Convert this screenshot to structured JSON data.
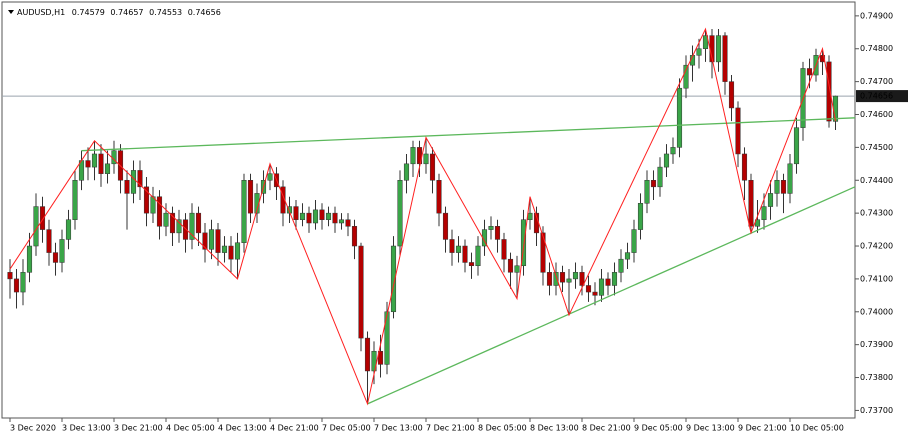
{
  "chart_data": {
    "type": "candlestick",
    "title": "AUDUSD,H1",
    "categories": [
      "3 Dec 2020",
      null,
      null,
      null,
      null,
      null,
      null,
      null,
      "3 Dec 13:00",
      null,
      null,
      null,
      null,
      null,
      null,
      null,
      "3 Dec 21:00",
      null,
      null,
      null,
      null,
      null,
      null,
      null,
      "4 Dec 05:00",
      null,
      null,
      null,
      null,
      null,
      null,
      null,
      "4 Dec 13:00",
      null,
      null,
      null,
      null,
      null,
      null,
      null,
      "4 Dec 21:00",
      null,
      null,
      null,
      null,
      null,
      null,
      null,
      "7 Dec 05:00",
      null,
      null,
      null,
      null,
      null,
      null,
      null,
      "7 Dec 13:00",
      null,
      null,
      null,
      null,
      null,
      null,
      null,
      "7 Dec 21:00",
      null,
      null,
      null,
      null,
      null,
      null,
      null,
      "8 Dec 05:00",
      null,
      null,
      null,
      null,
      null,
      null,
      null,
      "8 Dec 13:00",
      null,
      null,
      null,
      null,
      null,
      null,
      null,
      "8 Dec 21:00",
      null,
      null,
      null,
      null,
      null,
      null,
      null,
      "9 Dec 05:00",
      null,
      null,
      null,
      null,
      null,
      null,
      null,
      "9 Dec 13:00",
      null,
      null,
      null,
      null,
      null,
      null,
      null,
      "9 Dec 21:00",
      null,
      null,
      null,
      null,
      null,
      null,
      null,
      "10 Dec 05:00",
      null,
      null,
      null,
      null,
      null,
      null,
      null
    ],
    "open": [
      0.7412,
      0.741,
      0.7406,
      0.7412,
      0.742,
      0.7432,
      0.7425,
      0.7418,
      0.7415,
      0.7422,
      0.7428,
      0.744,
      0.7446,
      0.7444,
      0.7448,
      0.7442,
      0.7445,
      0.7449,
      0.744,
      0.7436,
      0.7443,
      0.7438,
      0.743,
      0.7435,
      0.7426,
      0.743,
      0.7424,
      0.7428,
      0.7422,
      0.743,
      0.7424,
      0.7419,
      0.7425,
      0.7418,
      0.742,
      0.7416,
      0.7421,
      0.744,
      0.743,
      0.7436,
      0.744,
      0.7442,
      0.7438,
      0.743,
      0.7432,
      0.7428,
      0.743,
      0.7427,
      0.7431,
      0.7428,
      0.743,
      0.7427,
      0.7428,
      0.7426,
      0.742,
      0.7392,
      0.7382,
      0.7388,
      0.7384,
      0.74,
      0.742,
      0.744,
      0.7445,
      0.745,
      0.7445,
      0.7448,
      0.744,
      0.743,
      0.7422,
      0.7418,
      0.742,
      0.7415,
      0.7414,
      0.742,
      0.7425,
      0.7426,
      0.7422,
      0.7416,
      0.7412,
      0.7414,
      0.7428,
      0.743,
      0.7424,
      0.7412,
      0.7408,
      0.7412,
      0.7409,
      0.741,
      0.7412,
      0.7408,
      0.7406,
      0.7405,
      0.741,
      0.7408,
      0.7412,
      0.7416,
      0.7418,
      0.7425,
      0.7433,
      0.744,
      0.7438,
      0.7444,
      0.7448,
      0.745,
      0.7468,
      0.7475,
      0.7478,
      0.748,
      0.7484,
      0.7476,
      0.7484,
      0.747,
      0.7462,
      0.7448,
      0.744,
      0.7426,
      0.7428,
      0.7432,
      0.7436,
      0.744,
      0.7436,
      0.7445,
      0.7456,
      0.7474,
      0.7472,
      0.7478,
      0.7476,
      0.74579
    ],
    "high": [
      0.7416,
      0.7413,
      0.7416,
      0.7424,
      0.7436,
      0.7435,
      0.7428,
      0.7421,
      0.7425,
      0.7431,
      0.7443,
      0.7449,
      0.745,
      0.7452,
      0.7451,
      0.7449,
      0.7452,
      0.7451,
      0.7443,
      0.7446,
      0.7446,
      0.7441,
      0.7438,
      0.7437,
      0.7433,
      0.7432,
      0.7431,
      0.743,
      0.7433,
      0.7432,
      0.7427,
      0.7428,
      0.7427,
      0.7423,
      0.7423,
      0.7424,
      0.7442,
      0.7442,
      0.7439,
      0.7443,
      0.7445,
      0.7444,
      0.744,
      0.7435,
      0.7434,
      0.7433,
      0.7432,
      0.7434,
      0.7433,
      0.7432,
      0.7432,
      0.743,
      0.743,
      0.7428,
      0.7421,
      0.7394,
      0.7391,
      0.7393,
      0.7403,
      0.7423,
      0.7443,
      0.7448,
      0.7452,
      0.7452,
      0.7453,
      0.745,
      0.7442,
      0.7432,
      0.7425,
      0.7423,
      0.7422,
      0.7418,
      0.7423,
      0.7428,
      0.7429,
      0.7428,
      0.7424,
      0.7418,
      0.7417,
      0.7431,
      0.7435,
      0.7432,
      0.7426,
      0.7415,
      0.7415,
      0.7414,
      0.7413,
      0.7415,
      0.7414,
      0.7411,
      0.7409,
      0.7413,
      0.7412,
      0.7415,
      0.7419,
      0.7421,
      0.7428,
      0.7436,
      0.7443,
      0.7443,
      0.7447,
      0.7451,
      0.7453,
      0.7471,
      0.7478,
      0.7481,
      0.7483,
      0.7486,
      0.7486,
      0.7486,
      0.7485,
      0.7472,
      0.7464,
      0.745,
      0.7442,
      0.7434,
      0.7436,
      0.744,
      0.7443,
      0.7442,
      0.7448,
      0.7459,
      0.7476,
      0.7477,
      0.748,
      0.748,
      0.7478,
      0.74657
    ],
    "low": [
      0.7404,
      0.7401,
      0.7402,
      0.7409,
      0.7417,
      0.7421,
      0.7414,
      0.7411,
      0.7412,
      0.7419,
      0.7425,
      0.7437,
      0.744,
      0.744,
      0.7438,
      0.7439,
      0.7442,
      0.7436,
      0.7425,
      0.7433,
      0.7434,
      0.7426,
      0.7427,
      0.7422,
      0.7423,
      0.742,
      0.7421,
      0.7418,
      0.7419,
      0.742,
      0.7415,
      0.7416,
      0.7414,
      0.7415,
      0.7412,
      0.741,
      0.7418,
      0.7427,
      0.7427,
      0.7433,
      0.7437,
      0.7434,
      0.7426,
      0.7427,
      0.7425,
      0.7426,
      0.7424,
      0.7425,
      0.7425,
      0.7426,
      0.7424,
      0.7425,
      0.7423,
      0.7416,
      0.7388,
      0.7372,
      0.7378,
      0.738,
      0.7381,
      0.7398,
      0.7417,
      0.7436,
      0.7441,
      0.7441,
      0.7442,
      0.7436,
      0.7426,
      0.7418,
      0.7414,
      0.7415,
      0.7412,
      0.741,
      0.7411,
      0.7417,
      0.7422,
      0.7418,
      0.7412,
      0.7407,
      0.7404,
      0.7411,
      0.7425,
      0.742,
      0.7408,
      0.7405,
      0.7405,
      0.7406,
      0.7399,
      0.7407,
      0.7405,
      0.7403,
      0.7402,
      0.7403,
      0.7405,
      0.7405,
      0.7409,
      0.7413,
      0.7415,
      0.7422,
      0.743,
      0.7434,
      0.7435,
      0.7441,
      0.7445,
      0.7447,
      0.7465,
      0.747,
      0.7474,
      0.7476,
      0.7471,
      0.7473,
      0.7466,
      0.7458,
      0.7444,
      0.7434,
      0.7424,
      0.7424,
      0.7425,
      0.7428,
      0.7432,
      0.743,
      0.7433,
      0.7442,
      0.7452,
      0.7468,
      0.747,
      0.7472,
      0.7456,
      0.74553
    ],
    "close": [
      0.741,
      0.7406,
      0.7412,
      0.742,
      0.7432,
      0.7425,
      0.7418,
      0.7415,
      0.7422,
      0.7428,
      0.744,
      0.7446,
      0.7444,
      0.7448,
      0.7442,
      0.7445,
      0.7449,
      0.744,
      0.7436,
      0.7443,
      0.7438,
      0.743,
      0.7435,
      0.7426,
      0.743,
      0.7424,
      0.7428,
      0.7422,
      0.743,
      0.7424,
      0.7419,
      0.7425,
      0.7418,
      0.742,
      0.7416,
      0.7421,
      0.744,
      0.743,
      0.7436,
      0.744,
      0.7442,
      0.7438,
      0.743,
      0.7432,
      0.7428,
      0.743,
      0.7427,
      0.7431,
      0.7428,
      0.743,
      0.7427,
      0.7428,
      0.7426,
      0.742,
      0.7392,
      0.7382,
      0.7388,
      0.7384,
      0.74,
      0.742,
      0.744,
      0.7445,
      0.745,
      0.7445,
      0.7448,
      0.744,
      0.743,
      0.7422,
      0.7418,
      0.742,
      0.7415,
      0.7414,
      0.742,
      0.7425,
      0.7426,
      0.7422,
      0.7416,
      0.7412,
      0.7414,
      0.7428,
      0.743,
      0.7424,
      0.7412,
      0.7408,
      0.7412,
      0.7409,
      0.741,
      0.7412,
      0.7408,
      0.7406,
      0.7405,
      0.741,
      0.7408,
      0.7412,
      0.7416,
      0.7418,
      0.7425,
      0.7433,
      0.744,
      0.7438,
      0.7444,
      0.7448,
      0.745,
      0.7468,
      0.7475,
      0.7478,
      0.748,
      0.7484,
      0.7476,
      0.7484,
      0.747,
      0.7462,
      0.7448,
      0.744,
      0.7426,
      0.7428,
      0.7432,
      0.7436,
      0.744,
      0.7436,
      0.7445,
      0.7456,
      0.7474,
      0.7472,
      0.7478,
      0.7476,
      0.7458,
      0.74656
    ],
    "up_color": "#3aa548",
    "down_color": "#b40000",
    "zigzag": {
      "color": "#ff2020",
      "x": [
        0,
        13,
        35,
        40,
        55,
        64,
        78,
        80,
        86,
        107,
        114,
        125,
        127
      ],
      "values": [
        0.7413,
        0.7452,
        0.741,
        0.7445,
        0.7372,
        0.7453,
        0.7404,
        0.7435,
        0.7399,
        0.7486,
        0.7424,
        0.748,
        0.7458
      ]
    },
    "trendlines": [
      {
        "color": "#5cb85c",
        "x": [
          11,
          130
        ],
        "values": [
          0.7449,
          0.7459
        ]
      },
      {
        "color": "#5cb85c",
        "x": [
          55,
          130
        ],
        "values": [
          0.7372,
          0.7438
        ]
      }
    ],
    "ylim": [
      0.7368,
      0.7493
    ],
    "yticks": [
      {
        "value": 0.749,
        "label": "0.74900"
      },
      {
        "value": 0.748,
        "label": "0.74800"
      },
      {
        "value": 0.747,
        "label": "0.74700"
      },
      {
        "value": 0.746,
        "label": "0.74600"
      },
      {
        "value": 0.745,
        "label": "0.74500"
      },
      {
        "value": 0.744,
        "label": "0.74400"
      },
      {
        "value": 0.743,
        "label": "0.74300"
      },
      {
        "value": 0.742,
        "label": "0.74200"
      },
      {
        "value": 0.741,
        "label": "0.74100"
      },
      {
        "value": 0.74,
        "label": "0.74000"
      },
      {
        "value": 0.739,
        "label": "0.73900"
      },
      {
        "value": 0.738,
        "label": "0.73800"
      },
      {
        "value": 0.737,
        "label": "0.73700"
      }
    ],
    "grid": false
  }
}
